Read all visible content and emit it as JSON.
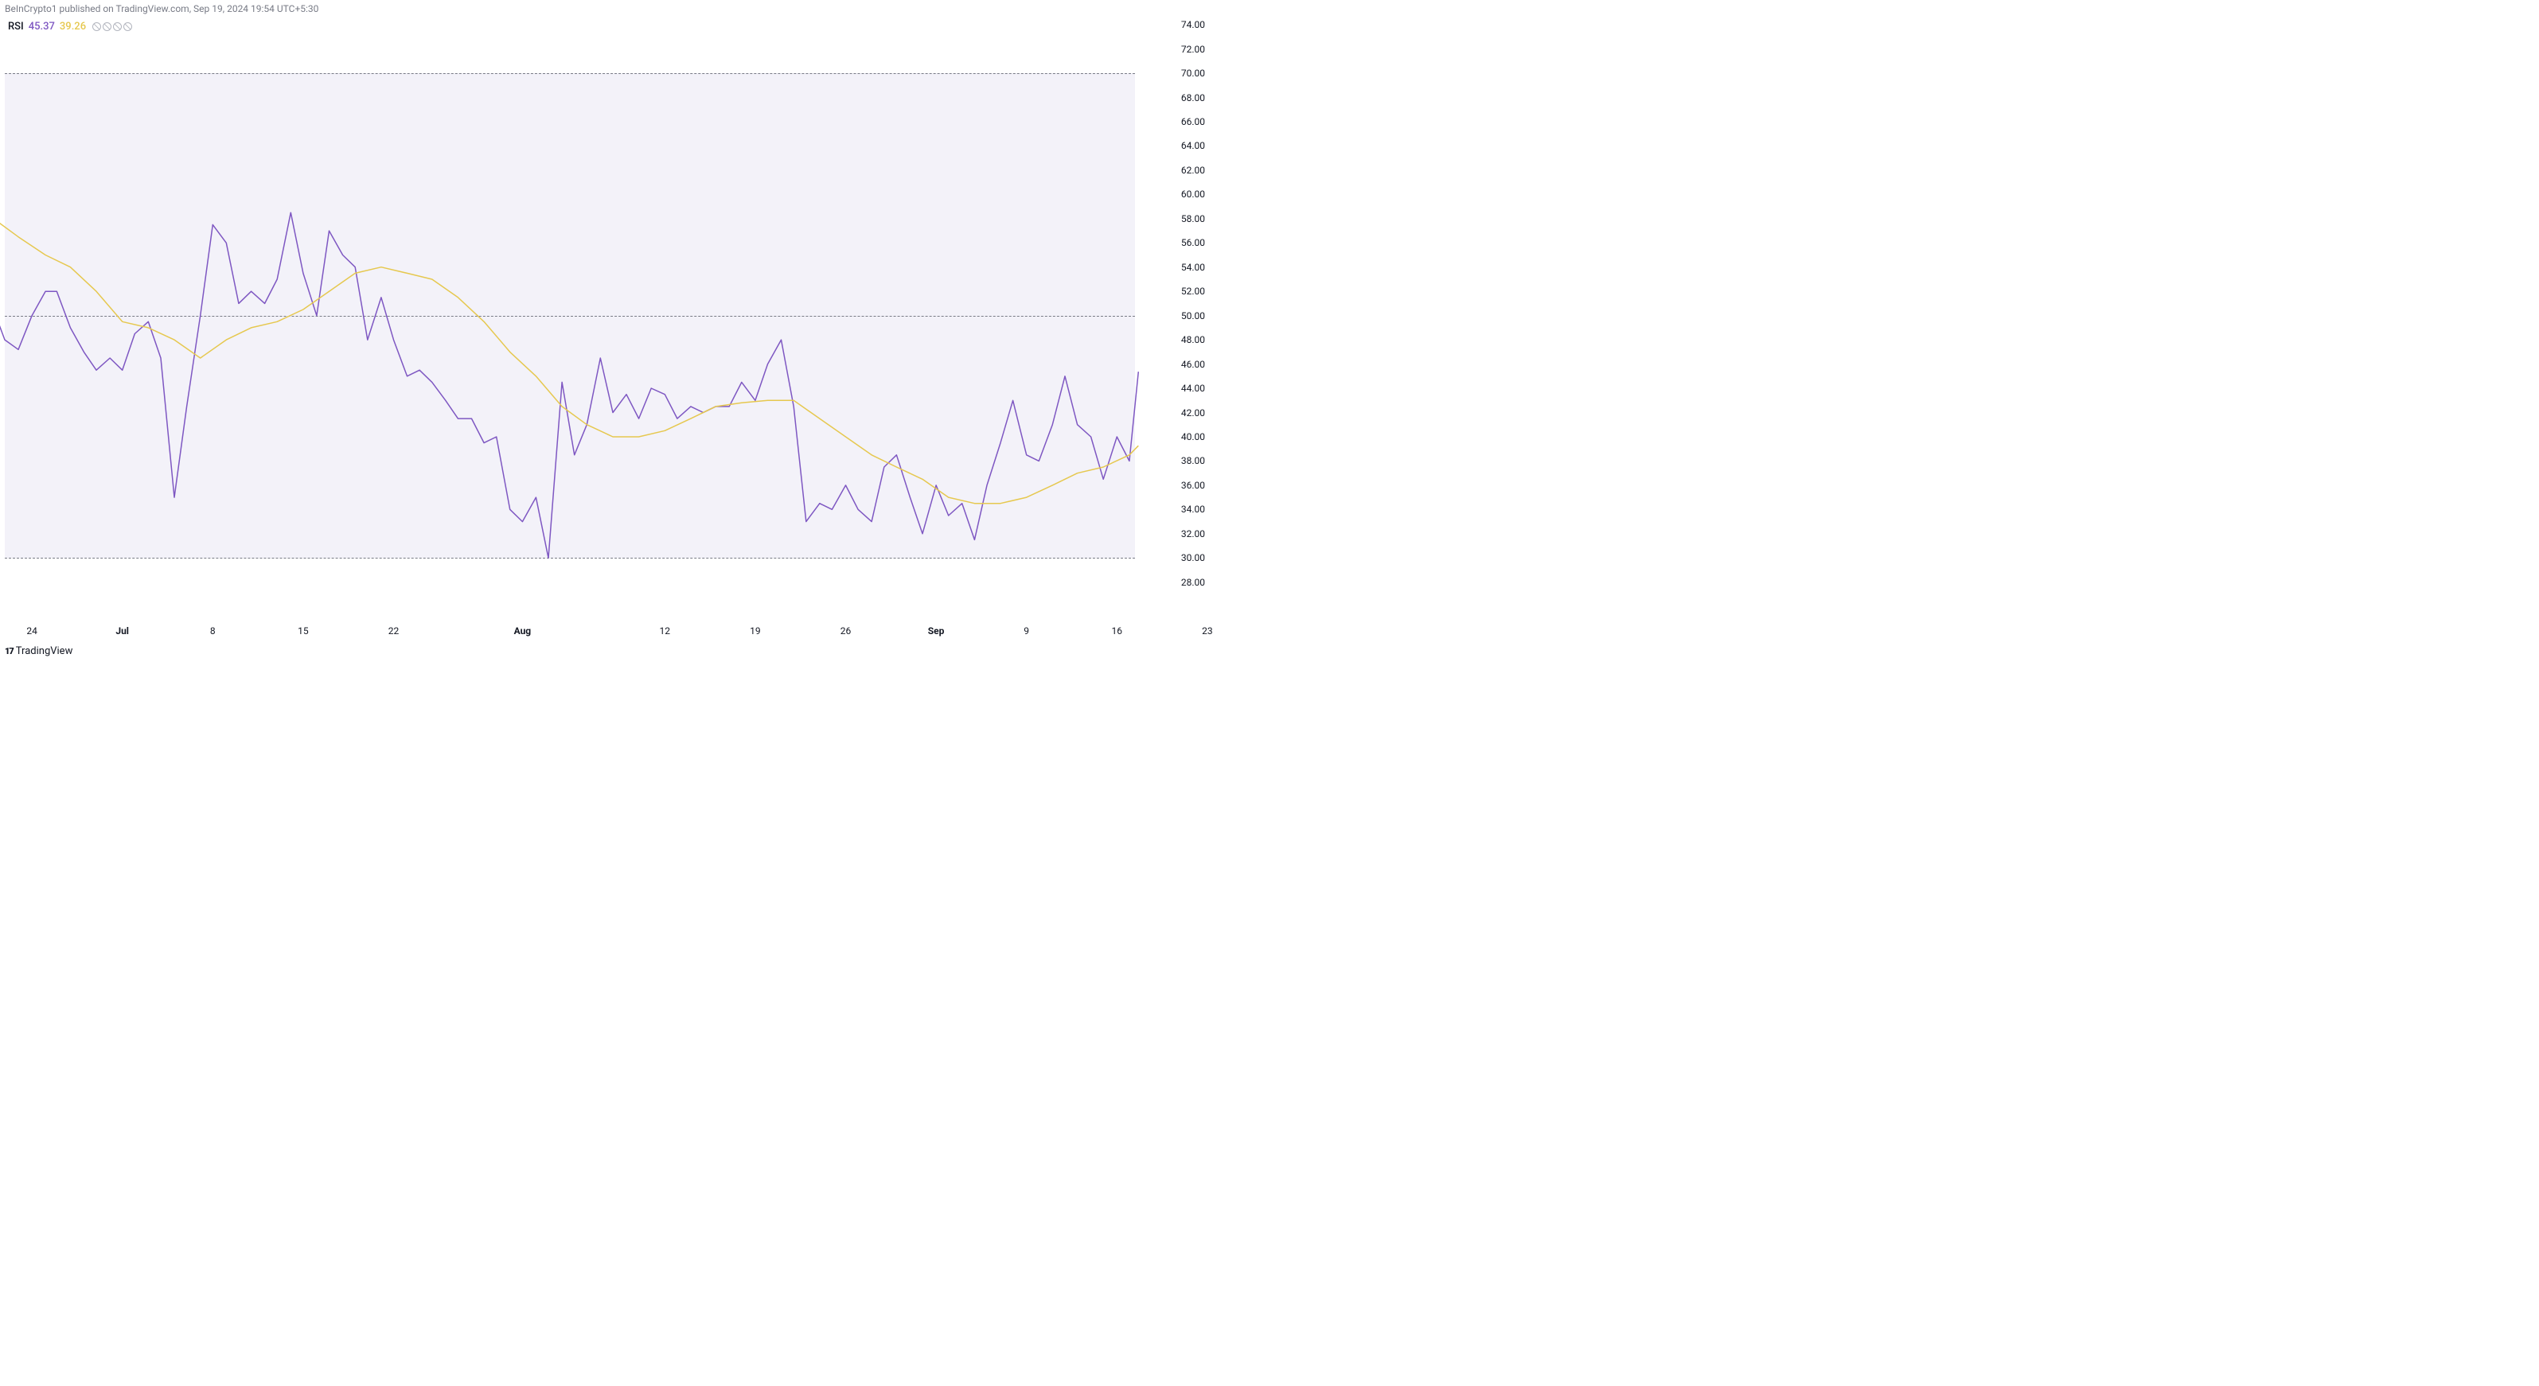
{
  "header": {
    "attribution": "BeInCrypto1 published on TradingView.com, Sep 19, 2024 19:54 UTC+5:30"
  },
  "legend": {
    "indicator": "RSI",
    "value1": "45.37",
    "value2": "39.26",
    "null_count": 4
  },
  "footer": {
    "brand": "TradingView",
    "logo": "17"
  },
  "chart": {
    "type": "line",
    "background_color": "#ffffff",
    "fill_color": "#eeecf6",
    "fill_opacity": 0.7,
    "yaxis": {
      "min": 26.8,
      "max": 74.6,
      "tick_start": 28,
      "tick_end": 74,
      "tick_step": 2,
      "fontsize": 12,
      "color": "#131722"
    },
    "bands": {
      "upper": 70,
      "mid": 50,
      "lower": 30,
      "upper_color": "#787b86",
      "mid_color": "#787b86",
      "lower_color": "#787b86",
      "dash": "6,4"
    },
    "xaxis": {
      "ticks": [
        {
          "label": "24",
          "pos": 0.024,
          "bold": false
        },
        {
          "label": "Jul",
          "pos": 0.104,
          "bold": true
        },
        {
          "label": "8",
          "pos": 0.184,
          "bold": false
        },
        {
          "label": "15",
          "pos": 0.264,
          "bold": false
        },
        {
          "label": "22",
          "pos": 0.344,
          "bold": false
        },
        {
          "label": "Aug",
          "pos": 0.458,
          "bold": true
        },
        {
          "label": "12",
          "pos": 0.584,
          "bold": false
        },
        {
          "label": "19",
          "pos": 0.664,
          "bold": false
        },
        {
          "label": "26",
          "pos": 0.744,
          "bold": false
        },
        {
          "label": "Sep",
          "pos": 0.824,
          "bold": true
        },
        {
          "label": "9",
          "pos": 0.904,
          "bold": false
        },
        {
          "label": "16",
          "pos": 0.984,
          "bold": false
        },
        {
          "label": "23",
          "pos": 1.064,
          "bold": false
        }
      ],
      "fontsize": 12,
      "color": "#131722"
    },
    "series": [
      {
        "name": "rsi",
        "color": "#7e57c2",
        "width": 1.5,
        "points": [
          [
            -0.01,
            50.5
          ],
          [
            0.0,
            48.0
          ],
          [
            0.012,
            47.2
          ],
          [
            0.024,
            50.0
          ],
          [
            0.036,
            52.0
          ],
          [
            0.046,
            52.0
          ],
          [
            0.058,
            49.0
          ],
          [
            0.07,
            47.0
          ],
          [
            0.081,
            45.5
          ],
          [
            0.093,
            46.5
          ],
          [
            0.104,
            45.5
          ],
          [
            0.115,
            48.5
          ],
          [
            0.127,
            49.5
          ],
          [
            0.138,
            46.5
          ],
          [
            0.15,
            35.0
          ],
          [
            0.161,
            42.5
          ],
          [
            0.173,
            50.0
          ],
          [
            0.184,
            57.5
          ],
          [
            0.196,
            56.0
          ],
          [
            0.207,
            51.0
          ],
          [
            0.218,
            52.0
          ],
          [
            0.23,
            51.0
          ],
          [
            0.241,
            53.0
          ],
          [
            0.253,
            58.5
          ],
          [
            0.264,
            53.5
          ],
          [
            0.276,
            50.0
          ],
          [
            0.287,
            57.0
          ],
          [
            0.299,
            55.0
          ],
          [
            0.31,
            54.0
          ],
          [
            0.321,
            48.0
          ],
          [
            0.333,
            51.5
          ],
          [
            0.344,
            48.0
          ],
          [
            0.356,
            45.0
          ],
          [
            0.367,
            45.5
          ],
          [
            0.378,
            44.5
          ],
          [
            0.39,
            43.0
          ],
          [
            0.401,
            41.5
          ],
          [
            0.413,
            41.5
          ],
          [
            0.424,
            39.5
          ],
          [
            0.435,
            40.0
          ],
          [
            0.447,
            34.0
          ],
          [
            0.458,
            33.0
          ],
          [
            0.47,
            35.0
          ],
          [
            0.481,
            30.0
          ],
          [
            0.493,
            44.5
          ],
          [
            0.504,
            38.5
          ],
          [
            0.515,
            41.0
          ],
          [
            0.527,
            46.5
          ],
          [
            0.538,
            42.0
          ],
          [
            0.55,
            43.5
          ],
          [
            0.561,
            41.5
          ],
          [
            0.572,
            44.0
          ],
          [
            0.584,
            43.5
          ],
          [
            0.595,
            41.5
          ],
          [
            0.607,
            42.5
          ],
          [
            0.618,
            42.0
          ],
          [
            0.629,
            42.5
          ],
          [
            0.641,
            42.5
          ],
          [
            0.652,
            44.5
          ],
          [
            0.664,
            43.0
          ],
          [
            0.675,
            46.0
          ],
          [
            0.687,
            48.0
          ],
          [
            0.698,
            42.5
          ],
          [
            0.709,
            33.0
          ],
          [
            0.721,
            34.5
          ],
          [
            0.732,
            34.0
          ],
          [
            0.744,
            36.0
          ],
          [
            0.755,
            34.0
          ],
          [
            0.767,
            33.0
          ],
          [
            0.778,
            37.5
          ],
          [
            0.789,
            38.5
          ],
          [
            0.801,
            35.0
          ],
          [
            0.812,
            32.0
          ],
          [
            0.824,
            36.0
          ],
          [
            0.835,
            33.5
          ],
          [
            0.847,
            34.5
          ],
          [
            0.858,
            31.5
          ],
          [
            0.869,
            36.0
          ],
          [
            0.881,
            39.5
          ],
          [
            0.892,
            43.0
          ],
          [
            0.904,
            38.5
          ],
          [
            0.915,
            38.0
          ],
          [
            0.927,
            41.0
          ],
          [
            0.938,
            45.0
          ],
          [
            0.949,
            41.0
          ],
          [
            0.961,
            40.0
          ],
          [
            0.972,
            36.5
          ],
          [
            0.984,
            40.0
          ],
          [
            0.995,
            38.0
          ],
          [
            1.003,
            45.37
          ]
        ]
      },
      {
        "name": "rsi_ma",
        "color": "#e6c84f",
        "width": 1.5,
        "points": [
          [
            -0.01,
            58.0
          ],
          [
            0.012,
            56.5
          ],
          [
            0.036,
            55.0
          ],
          [
            0.058,
            54.0
          ],
          [
            0.081,
            52.0
          ],
          [
            0.104,
            49.5
          ],
          [
            0.127,
            49.0
          ],
          [
            0.15,
            48.0
          ],
          [
            0.173,
            46.5
          ],
          [
            0.196,
            48.0
          ],
          [
            0.218,
            49.0
          ],
          [
            0.241,
            49.5
          ],
          [
            0.264,
            50.5
          ],
          [
            0.287,
            52.0
          ],
          [
            0.31,
            53.5
          ],
          [
            0.333,
            54.0
          ],
          [
            0.356,
            53.5
          ],
          [
            0.378,
            53.0
          ],
          [
            0.401,
            51.5
          ],
          [
            0.424,
            49.5
          ],
          [
            0.447,
            47.0
          ],
          [
            0.47,
            45.0
          ],
          [
            0.493,
            42.5
          ],
          [
            0.515,
            41.0
          ],
          [
            0.538,
            40.0
          ],
          [
            0.561,
            40.0
          ],
          [
            0.584,
            40.5
          ],
          [
            0.607,
            41.5
          ],
          [
            0.629,
            42.5
          ],
          [
            0.652,
            42.8
          ],
          [
            0.675,
            43.0
          ],
          [
            0.698,
            43.0
          ],
          [
            0.721,
            41.5
          ],
          [
            0.744,
            40.0
          ],
          [
            0.767,
            38.5
          ],
          [
            0.789,
            37.5
          ],
          [
            0.812,
            36.5
          ],
          [
            0.835,
            35.0
          ],
          [
            0.858,
            34.5
          ],
          [
            0.881,
            34.5
          ],
          [
            0.904,
            35.0
          ],
          [
            0.927,
            36.0
          ],
          [
            0.949,
            37.0
          ],
          [
            0.972,
            37.5
          ],
          [
            0.995,
            38.5
          ],
          [
            1.003,
            39.26
          ]
        ]
      }
    ]
  }
}
